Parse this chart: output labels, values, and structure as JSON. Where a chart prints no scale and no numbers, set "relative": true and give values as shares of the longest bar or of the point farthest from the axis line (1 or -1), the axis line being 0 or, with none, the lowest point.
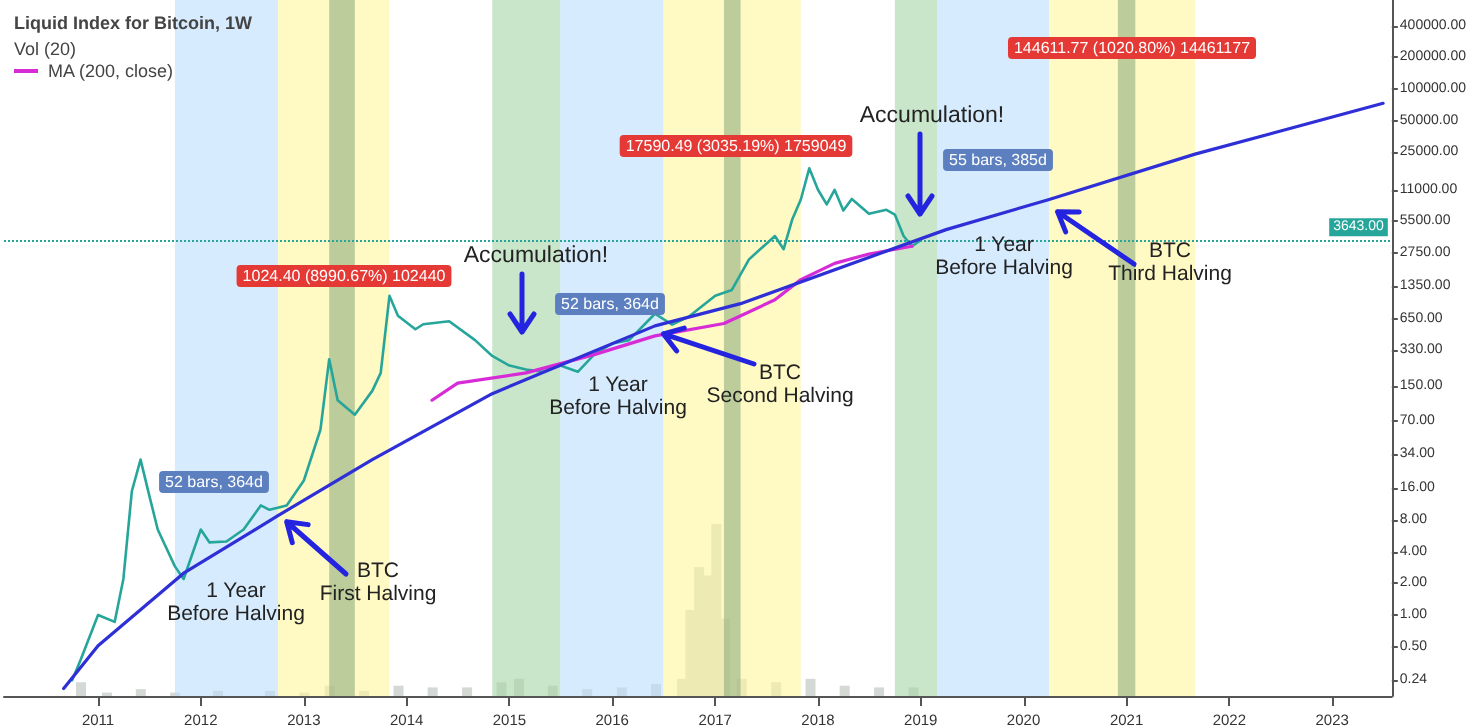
{
  "chart_data": [
    {
      "type": "line",
      "title": "Liquid Index for Bitcoin, 1W",
      "log": true,
      "legend": "top left",
      "marker": "none",
      "line_style": "solid",
      "grid": false,
      "x": [
        "2010-10",
        "2010-11",
        "2011-01",
        "2011-03",
        "2011-04",
        "2011-05",
        "2011-06",
        "2011-07",
        "2011-08",
        "2011-10",
        "2011-11",
        "2012-01",
        "2012-02",
        "2012-04",
        "2012-06",
        "2012-08",
        "2012-09",
        "2012-11",
        "2013-01",
        "2013-03",
        "2013-04",
        "2013-05",
        "2013-07",
        "2013-09",
        "2013-10",
        "2013-11",
        "2013-12",
        "2014-02",
        "2014-03",
        "2014-06",
        "2014-09",
        "2014-11",
        "2015-01",
        "2015-03",
        "2015-05",
        "2015-07",
        "2015-09",
        "2015-11",
        "2016-01",
        "2016-03",
        "2016-06",
        "2016-08",
        "2016-10",
        "2017-01",
        "2017-03",
        "2017-05",
        "2017-08",
        "2017-09",
        "2017-10",
        "2017-11",
        "2017-12",
        "2018-01",
        "2018-02",
        "2018-03",
        "2018-04",
        "2018-05",
        "2018-07",
        "2018-09",
        "2018-10",
        "2018-11",
        "2018-12",
        "2019-01"
      ],
      "series": [
        {
          "color": "#26a69a",
          "values": [
            0.24,
            0.38,
            1.0,
            0.86,
            2.2,
            15,
            30,
            14,
            6.5,
            2.9,
            2.2,
            6.5,
            4.9,
            5,
            6.5,
            11,
            10,
            11,
            19,
            58,
            270,
            110,
            80,
            135,
            200,
            1080,
            700,
            520,
            580,
            620,
            410,
            290,
            235,
            215,
            205,
            235,
            205,
            305,
            380,
            410,
            730,
            575,
            690,
            1080,
            1230,
            2400,
            4000,
            3000,
            5700,
            8900,
            17590,
            11000,
            8000,
            11000,
            7000,
            9000,
            6500,
            7100,
            6400,
            4000,
            3200,
            3643
          ]
        },
        {
          "name": "MA (200, close)",
          "color": "#d62bd6",
          "x": [
            "2014-04",
            "2014-07",
            "2015-03",
            "2015-11",
            "2016-06",
            "2017-02",
            "2017-08",
            "2017-11",
            "2018-03",
            "2018-07",
            "2018-12"
          ],
          "values": [
            110,
            160,
            200,
            300,
            450,
            590,
            990,
            1540,
            2200,
            2700,
            3200
          ]
        },
        {
          "type": "line",
          "color": "#2f2fd8",
          "x": [
            "2010-09",
            "2011-01",
            "2011-11",
            "2012-10",
            "2013-09",
            "2014-11",
            "2016-06",
            "2017-04",
            "2019-04",
            "2020-04",
            "2021-09",
            "2023-07"
          ],
          "values": [
            0.2,
            0.51,
            2.5,
            8.8,
            30,
            127,
            560,
            910,
            4600,
            8900,
            24000,
            73000
          ]
        }
      ],
      "xlim": [
        "2010-02",
        "2023-08"
      ],
      "xticks": [
        "2011",
        "2012",
        "2013",
        "2014",
        "2015",
        "2016",
        "2017",
        "2018",
        "2019",
        "2020",
        "2021",
        "2022",
        "2023"
      ],
      "ylim": [
        0.17,
        700000
      ],
      "yticks": [
        {
          "value": 0.24,
          "label": "0.24"
        },
        {
          "value": 0.5,
          "label": "0.50"
        },
        {
          "value": 1,
          "label": "1.00"
        },
        {
          "value": 2,
          "label": "2.00"
        },
        {
          "value": 4,
          "label": "4.00"
        },
        {
          "value": 8,
          "label": "8.00"
        },
        {
          "value": 16,
          "label": "16.00"
        },
        {
          "value": 34,
          "label": "34.00"
        },
        {
          "value": 70,
          "label": "70.00"
        },
        {
          "value": 150,
          "label": "150.00"
        },
        {
          "value": 330,
          "label": "330.00"
        },
        {
          "value": 650,
          "label": "650.00"
        },
        {
          "value": 1350,
          "label": "1350.00"
        },
        {
          "value": 2750,
          "label": "2750.00"
        },
        {
          "value": 5500,
          "label": "5500.00"
        },
        {
          "value": 11000,
          "label": "11000.00"
        },
        {
          "value": 25000,
          "label": "25000.00"
        },
        {
          "value": 50000,
          "label": "50000.00"
        },
        {
          "value": 100000,
          "label": "100000.00"
        },
        {
          "value": 200000,
          "label": "200000.00"
        },
        {
          "value": 400000,
          "label": "400000.00"
        }
      ],
      "ref_lines": [
        {
          "axis": "y",
          "value": 3643,
          "label": "3643.00",
          "color": "#26a69a",
          "line_style": "dotted"
        }
      ],
      "bands": [
        {
          "axis": "x",
          "from": "2011-10",
          "to": "2012-10",
          "color": "#bbdefb"
        },
        {
          "axis": "x",
          "from": "2012-10",
          "to": "2013-11",
          "color": "#fff59d"
        },
        {
          "axis": "x",
          "from": "2013-04",
          "to": "2013-07",
          "color": "#8fae7e"
        },
        {
          "axis": "x",
          "from": "2014-11",
          "to": "2015-07",
          "color": "#a5d6a7"
        },
        {
          "axis": "x",
          "from": "2015-07",
          "to": "2016-07",
          "color": "#bbdefb"
        },
        {
          "axis": "x",
          "from": "2016-07",
          "to": "2017-11",
          "color": "#fff59d"
        },
        {
          "axis": "x",
          "from": "2017-02",
          "to": "2017-04",
          "color": "#8fae7e"
        },
        {
          "axis": "x",
          "from": "2018-10",
          "to": "2019-03",
          "color": "#a5d6a7"
        },
        {
          "axis": "x",
          "from": "2019-03",
          "to": "2020-04",
          "color": "#bbdefb"
        },
        {
          "axis": "x",
          "from": "2020-04",
          "to": "2021-09",
          "color": "#fff59d"
        },
        {
          "axis": "x",
          "from": "2020-12",
          "to": "2021-02",
          "color": "#8fae7e"
        }
      ],
      "annotations": [
        "52 bars, 364d",
        "1024.40 (8990.67%) 102440",
        "52 bars, 364d",
        "17590.49 (3035.19%) 1759049",
        "55 bars, 385d",
        "144611.77 (1020.80%) 14461177",
        "Accumulation!",
        "Accumulation!",
        "1 Year\nBefore Halving",
        "1 Year\nBefore Halving",
        "1 Year\nBefore Halving",
        {
          "text": "BTC\nFirst Halving",
          "x": "2012-11",
          "y": 7.7
        },
        {
          "text": "BTC\nSecond Halving",
          "x": "2016-07",
          "y": 470
        },
        {
          "text": "BTC\nThird Halving",
          "x": "2020-05",
          "y": 6800
        }
      ]
    },
    {
      "type": "bar",
      "title": "Vol (20)",
      "relative": true,
      "tick_labels": false,
      "xlim": [
        "2010-02",
        "2023-08"
      ],
      "color": "#d5d9d5",
      "x": [
        "2010-11",
        "2011-02",
        "2011-06",
        "2011-10",
        "2012-03",
        "2012-09",
        "2013-01",
        "2013-04",
        "2013-08",
        "2013-12",
        "2014-04",
        "2014-08",
        "2014-12",
        "2015-02",
        "2015-06",
        "2015-10",
        "2016-02",
        "2016-06",
        "2016-09",
        "2016-10",
        "2016-11",
        "2016-12",
        "2017-01",
        "2017-02",
        "2017-04",
        "2017-08",
        "2017-12",
        "2018-04",
        "2018-08",
        "2018-12"
      ],
      "values": [
        0.08,
        0.02,
        0.04,
        0.02,
        0.03,
        0.03,
        0.02,
        0.06,
        0.03,
        0.06,
        0.05,
        0.05,
        0.08,
        0.1,
        0.06,
        0.04,
        0.05,
        0.07,
        0.1,
        0.5,
        0.75,
        0.7,
        1,
        0.45,
        0.1,
        0.08,
        0.1,
        0.06,
        0.05,
        0.05
      ]
    }
  ]
}
